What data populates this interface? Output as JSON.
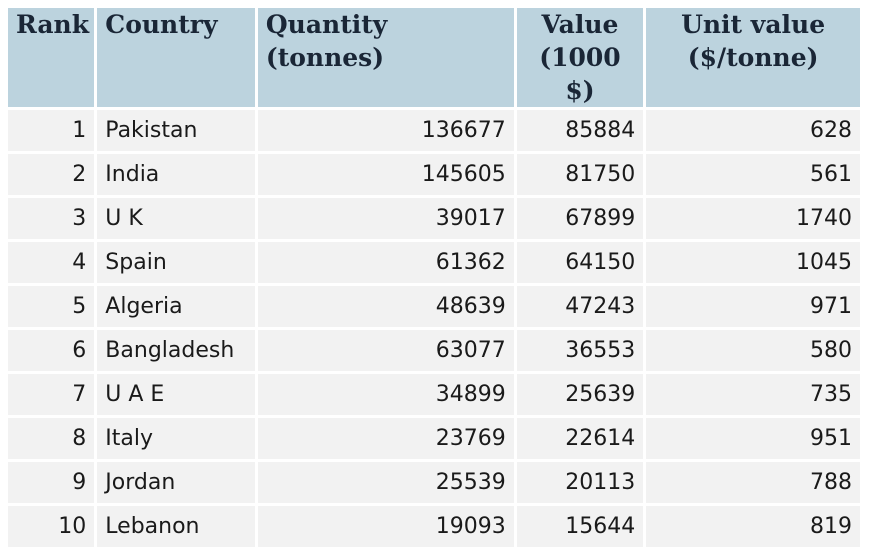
{
  "table": {
    "headers": {
      "rank": "Rank",
      "country": "Country",
      "quantity": "Quantity (tonnes)",
      "value_line1": "Value",
      "value_line2": "(1000 $)",
      "unit_line1": "Unit value",
      "unit_line2": "($/tonne)"
    },
    "rows": [
      {
        "rank": "1",
        "country": "Pakistan",
        "quantity": "136677",
        "value": "85884",
        "unit": "628"
      },
      {
        "rank": "2",
        "country": "India",
        "quantity": "145605",
        "value": "81750",
        "unit": "561"
      },
      {
        "rank": "3",
        "country": "U K",
        "quantity": "39017",
        "value": "67899",
        "unit": "1740"
      },
      {
        "rank": "4",
        "country": "Spain",
        "quantity": "61362",
        "value": "64150",
        "unit": "1045"
      },
      {
        "rank": "5",
        "country": "Algeria",
        "quantity": "48639",
        "value": "47243",
        "unit": "971"
      },
      {
        "rank": "6",
        "country": "Bangladesh",
        "quantity": "63077",
        "value": "36553",
        "unit": "580"
      },
      {
        "rank": "7",
        "country": "U A E",
        "quantity": "34899",
        "value": "25639",
        "unit": "735"
      },
      {
        "rank": "8",
        "country": "Italy",
        "quantity": "23769",
        "value": "22614",
        "unit": "951"
      },
      {
        "rank": "9",
        "country": "Jordan",
        "quantity": "25539",
        "value": "20113",
        "unit": "788"
      },
      {
        "rank": "10",
        "country": "Lebanon",
        "quantity": "19093",
        "value": "15644",
        "unit": "819"
      }
    ]
  },
  "colors": {
    "header_bg": "#bcd3de",
    "cell_bg": "#f2f2f2"
  }
}
